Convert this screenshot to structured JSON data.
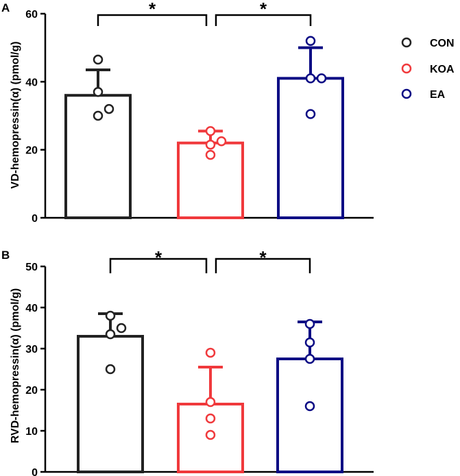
{
  "legend": [
    {
      "name": "CON",
      "color": "#222222"
    },
    {
      "name": "KOA",
      "color": "#f0393c"
    },
    {
      "name": "EA",
      "color": "#0a0a84"
    }
  ],
  "chart_data": [
    {
      "type": "bar",
      "panel": "A",
      "ylabel": "VD-hemopressin(α) (pmol/g)",
      "ylim": [
        0,
        60
      ],
      "yticks": [
        0,
        20,
        40,
        60
      ],
      "categories": [
        "CON",
        "KOA",
        "EA"
      ],
      "values": [
        36,
        22,
        41
      ],
      "error_upper": [
        43.5,
        25.5,
        50
      ],
      "points": [
        [
          30,
          32,
          37,
          46.5
        ],
        [
          18.5,
          21.5,
          22.5,
          25.5
        ],
        [
          30.5,
          41,
          41,
          52
        ]
      ],
      "significance": [
        {
          "from": 0,
          "to": 1,
          "label": "*"
        },
        {
          "from": 1,
          "to": 2,
          "label": "*"
        }
      ]
    },
    {
      "type": "bar",
      "panel": "B",
      "ylabel": "RVD-hemopressin(α) (pmol/g)",
      "ylim": [
        0,
        50
      ],
      "yticks": [
        0,
        10,
        20,
        30,
        40,
        50
      ],
      "categories": [
        "CON",
        "KOA",
        "EA"
      ],
      "values": [
        33,
        16.5,
        27.5
      ],
      "error_upper": [
        38.5,
        25.5,
        36.5
      ],
      "points": [
        [
          25,
          33.5,
          35,
          38
        ],
        [
          9,
          13,
          17,
          29
        ],
        [
          16,
          27.5,
          31.5,
          36
        ]
      ],
      "significance": [
        {
          "from": 0,
          "to": 1,
          "label": "*"
        },
        {
          "from": 1,
          "to": 2,
          "label": "*"
        }
      ]
    }
  ]
}
